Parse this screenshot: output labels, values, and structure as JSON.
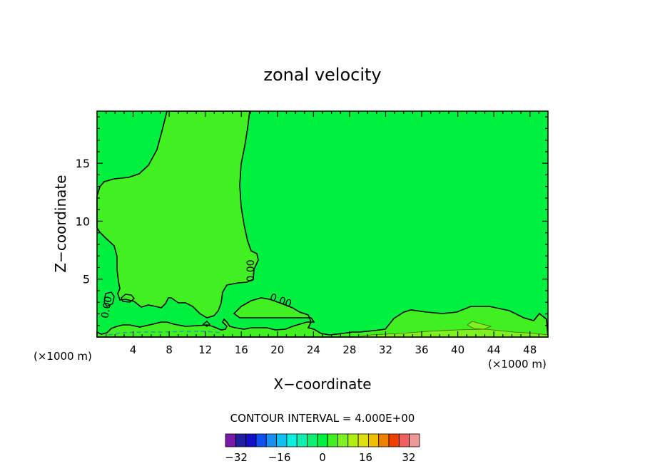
{
  "chart_data": {
    "type": "contour",
    "title": "zonal velocity",
    "xlabel": "X−coordinate",
    "ylabel": "Z−coordinate",
    "x_unit_left": "(×1000 m)",
    "x_unit_right": "(×1000 m)",
    "xlim": [
      0,
      50
    ],
    "ylim": [
      0,
      19.5
    ],
    "x_ticks": [
      4,
      8,
      12,
      16,
      20,
      24,
      28,
      32,
      36,
      40,
      44,
      48
    ],
    "y_ticks": [
      5,
      10,
      15
    ],
    "contour_labels": [
      "0.00",
      "0.00",
      "0.00"
    ],
    "contour_interval_text": "CONTOUR INTERVAL = 4.000E+00",
    "colorbar": {
      "levels": [
        -36,
        -32,
        -28,
        -24,
        -20,
        -16,
        -12,
        -8,
        -4,
        0,
        4,
        8,
        12,
        16,
        20,
        24,
        28,
        32,
        36
      ],
      "tick_labels": [
        "−32",
        "−16",
        "0",
        "16",
        "32"
      ],
      "tick_values": [
        -32,
        -16,
        0,
        16,
        32
      ],
      "colors": [
        "#7a1aa8",
        "#2020a0",
        "#1010c8",
        "#1050f0",
        "#1890f0",
        "#10c0f0",
        "#10f0e0",
        "#10f0b0",
        "#10f070",
        "#00f040",
        "#40f020",
        "#80f020",
        "#b0f010",
        "#e0e010",
        "#f0c000",
        "#f08000",
        "#f04000",
        "#f06060",
        "#f09898"
      ]
    },
    "regions": {
      "background_color": "#00f040",
      "positive_region_color": "#40f020",
      "negative_contour_color": "#20a0a0"
    }
  }
}
